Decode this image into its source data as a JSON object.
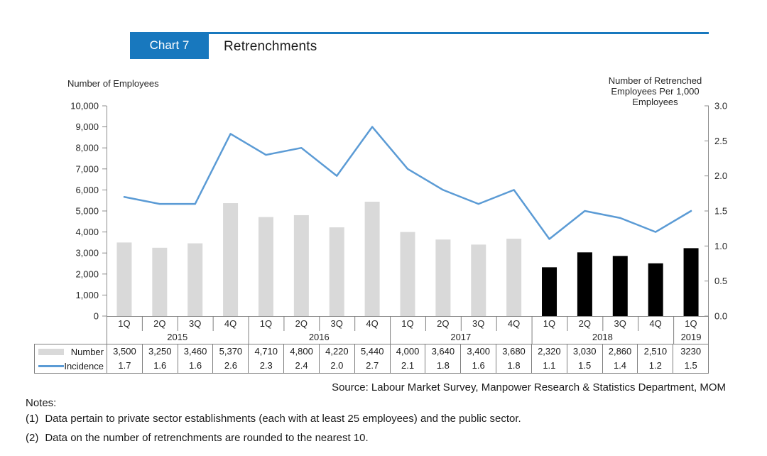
{
  "header": {
    "badge_label": "Chart 7",
    "title": "Retrenchments"
  },
  "colors": {
    "accent_blue": "#1878be",
    "line_blue": "#5b9bd5",
    "bar_gray": "#d9d9d9",
    "bar_black": "#000000",
    "grid_gray": "#7f7f7f",
    "axis_gray": "#8c8c8c"
  },
  "chart_data": {
    "type": "bar+line",
    "title": "Retrenchments",
    "left_axis": {
      "title": "Number of Employees",
      "min": 0,
      "max": 10000,
      "step": 1000,
      "tick_labels": [
        "0",
        "1,000",
        "2,000",
        "3,000",
        "4,000",
        "5,000",
        "6,000",
        "7,000",
        "8,000",
        "9,000",
        "10,000"
      ]
    },
    "right_axis": {
      "title_lines": [
        "Number of Retrenched",
        "Employees Per 1,000",
        "Employees"
      ],
      "min": 0.0,
      "max": 3.0,
      "step": 0.5,
      "tick_labels": [
        "0.0",
        "0.5",
        "1.0",
        "1.5",
        "2.0",
        "2.5",
        "3.0"
      ]
    },
    "years": [
      {
        "label": "2015",
        "quarters": [
          "1Q",
          "2Q",
          "3Q",
          "4Q"
        ]
      },
      {
        "label": "2016",
        "quarters": [
          "1Q",
          "2Q",
          "3Q",
          "4Q"
        ]
      },
      {
        "label": "2017",
        "quarters": [
          "1Q",
          "2Q",
          "3Q",
          "4Q"
        ]
      },
      {
        "label": "2018",
        "quarters": [
          "1Q",
          "2Q",
          "3Q",
          "4Q"
        ]
      },
      {
        "label": "2019",
        "quarters": [
          "1Q"
        ]
      }
    ],
    "series": [
      {
        "name": "Number",
        "type": "bar",
        "values": [
          3500,
          3250,
          3460,
          5370,
          4710,
          4800,
          4220,
          5440,
          4000,
          3640,
          3400,
          3680,
          2320,
          3030,
          2860,
          2510,
          3230
        ],
        "display": [
          "3,500",
          "3,250",
          "3,460",
          "5,370",
          "4,710",
          "4,800",
          "4,220",
          "5,440",
          "4,000",
          "3,640",
          "3,400",
          "3,680",
          "2,320",
          "3,030",
          "2,860",
          "2,510",
          "3230"
        ],
        "highlight_from_index": 12
      },
      {
        "name": "Incidence",
        "type": "line",
        "values": [
          1.7,
          1.6,
          1.6,
          2.6,
          2.3,
          2.4,
          2.0,
          2.7,
          2.1,
          1.8,
          1.6,
          1.8,
          1.1,
          1.5,
          1.4,
          1.2,
          1.5
        ],
        "display": [
          "1.7",
          "1.6",
          "1.6",
          "2.6",
          "2.3",
          "2.4",
          "2.0",
          "2.7",
          "2.1",
          "1.8",
          "1.6",
          "1.8",
          "1.1",
          "1.5",
          "1.4",
          "1.2",
          "1.5"
        ]
      }
    ],
    "legend_position": "table-left",
    "grid": false
  },
  "source": {
    "text": "Source: Labour Market Survey, Manpower Research & Statistics Department, MOM"
  },
  "notes": {
    "heading": "Notes:",
    "items": [
      {
        "num": "(1)",
        "text": "Data pertain to private sector establishments (each with at least 25 employees) and the public sector."
      },
      {
        "num": "(2)",
        "text": "Data on the number of retrenchments are rounded to the nearest 10."
      }
    ]
  }
}
